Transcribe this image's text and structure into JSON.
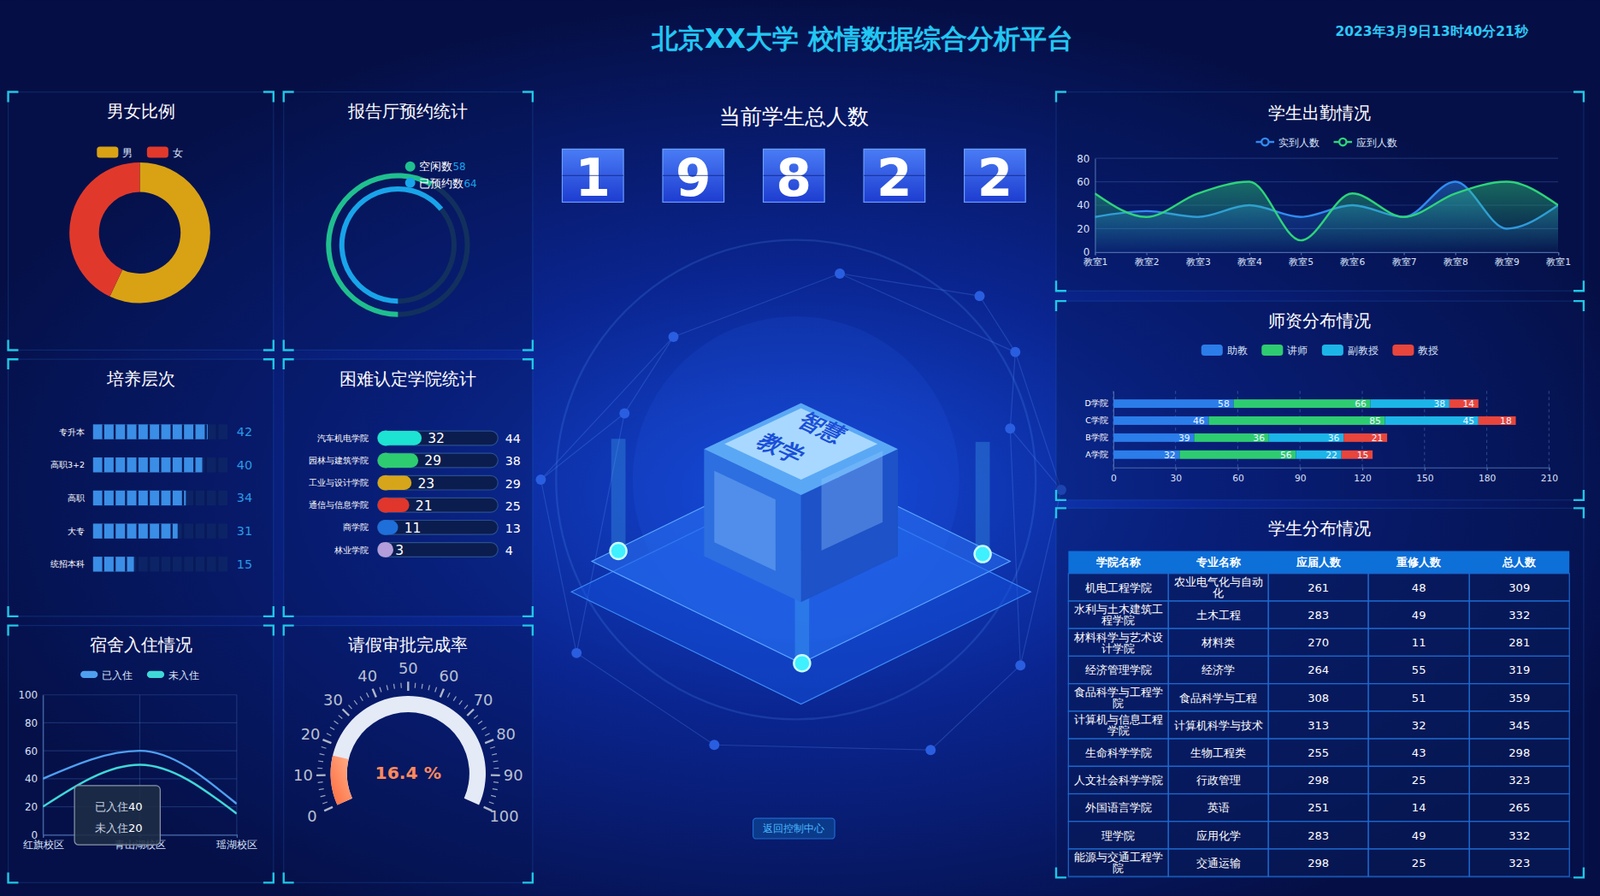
{
  "header": {
    "title": "北京XX大学 校情数据综合分析平台",
    "datetime": "2023年3月9日13时40分21秒"
  },
  "student_total": {
    "title": "当前学生总人数",
    "value": 19822
  },
  "illustration": {
    "lines": [
      "智慧",
      "教学"
    ]
  },
  "back_button": "返回控制中心",
  "chart_data": [
    {
      "type": "donut",
      "title": "男女比例",
      "categories": [
        "男",
        "女"
      ],
      "values": [
        57,
        43
      ],
      "colors": [
        "#d9a214",
        "#e0392b"
      ],
      "legend": "top"
    },
    {
      "type": "radial_bar",
      "title": "报告厅预约统计",
      "categories": [
        "空闲数",
        "已预约数"
      ],
      "values": [
        58,
        64
      ],
      "colors": [
        "#1fbf8f",
        "#18a4ea"
      ],
      "ylim": [
        0,
        100
      ],
      "legend": "top"
    },
    {
      "type": "bar",
      "title": "培养层次",
      "orientation": "horizontal",
      "categories": [
        "专升本",
        "高职3+2",
        "高职",
        "大专",
        "统招本科"
      ],
      "values": [
        42,
        40,
        34,
        31,
        15
      ],
      "color": "#3a8ee6",
      "xlim": [
        0,
        50
      ],
      "data_labels": true,
      "tick_labels": "y"
    },
    {
      "type": "bar",
      "title": "困难认定学院统计",
      "orientation": "horizontal",
      "categories": [
        "汽车机电学院",
        "园林与建筑学院",
        "工业与设计学院",
        "通信与信息学院",
        "商学院",
        "林业学院"
      ],
      "values": [
        32,
        29,
        23,
        21,
        11,
        3
      ],
      "totals": [
        44,
        38,
        29,
        25,
        13,
        4
      ],
      "colors": [
        "#1de3d2",
        "#2ecc71",
        "#d6a51a",
        "#e0362c",
        "#1e6fd9",
        "#b39ddb"
      ],
      "xlim": [
        0,
        100
      ],
      "data_labels": true,
      "tick_labels": "y"
    },
    {
      "type": "line",
      "title": "宿舍入住情况",
      "categories": [
        "红旗校区",
        "青山湖校区",
        "瑶湖校区"
      ],
      "series": [
        {
          "name": "已入住",
          "color": "#4f9ff0",
          "values": [
            40,
            60,
            22
          ]
        },
        {
          "name": "未入住",
          "color": "#3fd8d8",
          "values": [
            20,
            50,
            15
          ]
        }
      ],
      "ylim": [
        0,
        100
      ],
      "yticks": [
        0,
        20,
        40,
        60,
        80,
        100
      ],
      "grid": true,
      "legend": "top"
    },
    {
      "type": "gauge",
      "title": "请假审批完成率",
      "values": [
        16.4
      ],
      "value_labels": [
        "16.4 %"
      ],
      "color": "#ff8a5c",
      "ylim": [
        0,
        100
      ],
      "yticks": [
        0,
        10,
        20,
        30,
        40,
        50,
        60,
        70,
        80,
        90,
        100
      ]
    },
    {
      "type": "line",
      "title": "学生出勤情况",
      "categories": [
        "教室1",
        "教室2",
        "教室3",
        "教室4",
        "教室5",
        "教室6",
        "教室7",
        "教室8",
        "教室9",
        "教室1"
      ],
      "series": [
        {
          "name": "实到人数",
          "color": "#2f8cf0",
          "values": [
            30,
            35,
            30,
            40,
            30,
            40,
            30,
            60,
            20,
            40
          ]
        },
        {
          "name": "应到人数",
          "color": "#2ed47a",
          "values": [
            50,
            30,
            50,
            60,
            10,
            50,
            30,
            50,
            60,
            40
          ]
        }
      ],
      "ylim": [
        0,
        80
      ],
      "yticks": [
        0,
        20,
        40,
        60,
        80
      ],
      "grid": true,
      "legend": "top"
    },
    {
      "type": "bar",
      "title": "师资分布情况",
      "orientation": "horizontal",
      "stacked": true,
      "categories": [
        "A学院",
        "B学院",
        "C学院",
        "D学院"
      ],
      "series": [
        {
          "name": "助教",
          "color": "#2b7de9",
          "values": [
            32,
            39,
            46,
            58
          ]
        },
        {
          "name": "讲师",
          "color": "#2ecc71",
          "values": [
            56,
            36,
            85,
            66
          ]
        },
        {
          "name": "副教授",
          "color": "#1cb5e8",
          "values": [
            22,
            36,
            45,
            38
          ]
        },
        {
          "name": "教授",
          "color": "#e8453c",
          "values": [
            15,
            21,
            18,
            14
          ]
        }
      ],
      "xlim": [
        0,
        210
      ],
      "xticks": [
        0,
        30,
        60,
        90,
        120,
        150,
        180,
        210
      ],
      "grid": true,
      "data_labels": true,
      "legend": "top"
    }
  ],
  "student_table": {
    "title": "学生分布情况",
    "columns": [
      "学院名称",
      "专业名称",
      "应届人数",
      "重修人数",
      "总人数"
    ],
    "rows": [
      [
        "机电工程学院",
        "农业电气化与自动化",
        261,
        48,
        309
      ],
      [
        "水利与土木建筑工程学院",
        "土木工程",
        283,
        49,
        332
      ],
      [
        "材料科学与艺术设计学院",
        "材料类",
        270,
        11,
        281
      ],
      [
        "经济管理学院",
        "经济学",
        264,
        55,
        319
      ],
      [
        "食品科学与工程学院",
        "食品科学与工程",
        308,
        51,
        359
      ],
      [
        "计算机与信息工程学院",
        "计算机科学与技术",
        313,
        32,
        345
      ],
      [
        "生命科学学院",
        "生物工程类",
        255,
        43,
        298
      ],
      [
        "人文社会科学学院",
        "行政管理",
        298,
        25,
        323
      ],
      [
        "外国语言学院",
        "英语",
        251,
        14,
        265
      ],
      [
        "理学院",
        "应用化学",
        283,
        49,
        332
      ],
      [
        "能源与交通工程学院",
        "交通运输",
        298,
        25,
        323
      ]
    ]
  }
}
